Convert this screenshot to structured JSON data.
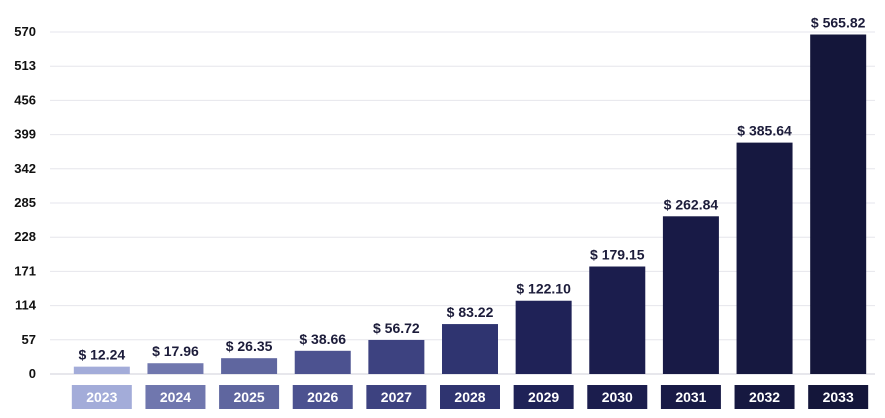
{
  "chart_data": {
    "type": "bar",
    "title": "",
    "xlabel": "",
    "ylabel": "",
    "categories": [
      "2023",
      "2024",
      "2025",
      "2026",
      "2027",
      "2028",
      "2029",
      "2030",
      "2031",
      "2032",
      "2033"
    ],
    "values": [
      12.24,
      17.96,
      26.35,
      38.66,
      56.72,
      83.22,
      122.1,
      179.15,
      262.84,
      385.64,
      565.82
    ],
    "value_labels": [
      "$ 12.24",
      "$ 17.96",
      "$ 26.35",
      "$ 38.66",
      "$ 56.72",
      "$ 83.22",
      "$ 122.10",
      "$ 179.15",
      "$ 262.84",
      "$ 385.64",
      "$ 565.82"
    ],
    "ylim": [
      0,
      570
    ],
    "yticks": [
      "0",
      "57",
      "114",
      "171",
      "228",
      "285",
      "342",
      "399",
      "456",
      "513",
      "570"
    ],
    "grid": true,
    "bar_colors": [
      "#a3acd9",
      "#7077ae",
      "#5f669f",
      "#4c5290",
      "#3d4280",
      "#2f3470",
      "#1f2257",
      "#1b1d4d",
      "#181a46",
      "#161840",
      "#14163a"
    ]
  }
}
